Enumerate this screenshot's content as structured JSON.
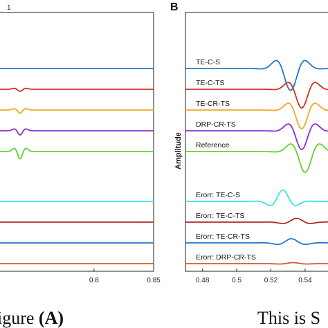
{
  "chart_data": [
    {
      "type": "line",
      "panel": "",
      "corner_label": "1",
      "xlim": [
        0.72,
        0.85
      ],
      "x_ticks": [
        "0.8",
        "0.85"
      ],
      "x_tick_values": [
        0.8,
        0.85
      ],
      "series": [
        {
          "color": "#1f77c8",
          "offset": 8.6,
          "amp": 0.0
        },
        {
          "color": "#d62d20",
          "offset": 7.6,
          "amp": 0.1
        },
        {
          "color": "#f5a623",
          "offset": 6.6,
          "amp": 0.15
        },
        {
          "color": "#8e2fd0",
          "offset": 5.6,
          "amp": 0.2
        },
        {
          "color": "#5fd32b",
          "offset": 4.6,
          "amp": 0.35
        },
        {
          "color": "#3ee4ea",
          "offset": 2.2,
          "amp": 0.0
        },
        {
          "color": "#b0282a",
          "offset": 1.2,
          "amp": 0.0
        },
        {
          "color": "#1f77c8",
          "offset": 0.2,
          "amp": 0.0
        },
        {
          "color": "#d9562a",
          "offset": -0.8,
          "amp": 0.0
        }
      ]
    },
    {
      "type": "line",
      "panel": "B",
      "ylabel": "Amplitude",
      "xlim": [
        0.47,
        0.555
      ],
      "x_ticks": [
        "0.48",
        "0.5",
        "0.52",
        "0.54"
      ],
      "x_tick_values": [
        0.48,
        0.5,
        0.52,
        0.54
      ],
      "series": [
        {
          "name": "TE-C-S",
          "color": "#1f77c8",
          "offset": 8.6
        },
        {
          "name": "TE-C-TS",
          "color": "#d62d20",
          "offset": 7.6
        },
        {
          "name": "TE-CR-TS",
          "color": "#f5a623",
          "offset": 6.6
        },
        {
          "name": "DRP-CR-TS",
          "color": "#8e2fd0",
          "offset": 5.6
        },
        {
          "name": "Reference",
          "color": "#5fd32b",
          "offset": 4.6
        },
        {
          "name": "Erorr: TE-C-S",
          "color": "#3ee4ea",
          "offset": 2.2
        },
        {
          "name": "Erorr: TE-C-TS",
          "color": "#b0282a",
          "offset": 1.2
        },
        {
          "name": "Erorr: TE-CR-TS",
          "color": "#1f77c8",
          "offset": 0.2
        },
        {
          "name": "Erorr: DRP-CR-TS",
          "color": "#d9562a",
          "offset": -0.8
        }
      ]
    }
  ],
  "captions": {
    "left_text": "igure ",
    "left_bold": "(A)",
    "right_text": "This is S"
  }
}
